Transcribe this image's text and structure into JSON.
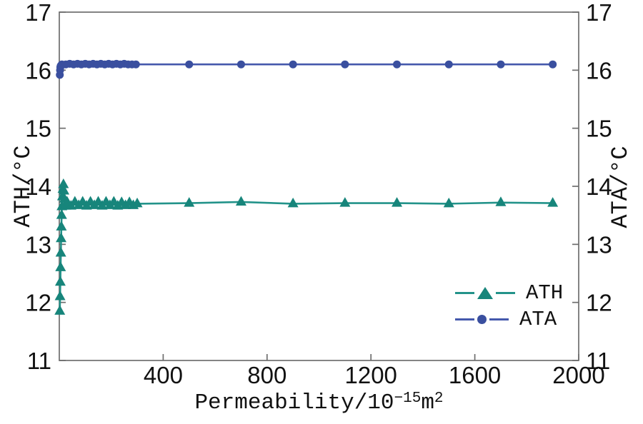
{
  "figure": {
    "background": "#ffffff",
    "axis_color": "#6e6e6e",
    "text_color": "#111111"
  },
  "chart_data": {
    "type": "line",
    "title": "",
    "grid": false,
    "x_axis": {
      "label_prefix": "Permeability/10",
      "label_sup": "−15",
      "label_unit": "m",
      "label_unit_sup": "2",
      "range": [
        0,
        2000
      ],
      "ticks": [
        400,
        800,
        1200,
        1600,
        2000
      ]
    },
    "y_left_axis": {
      "label": "ATH/°C",
      "range": [
        11,
        17
      ],
      "ticks": [
        11,
        12,
        13,
        14,
        15,
        16,
        17
      ]
    },
    "y_right_axis": {
      "label": "ATA/°C",
      "range": [
        11,
        17
      ],
      "ticks": [
        11,
        12,
        13,
        14,
        15,
        16,
        17
      ]
    },
    "legend": {
      "position": "lower-right",
      "items": [
        {
          "label": "ATH",
          "marker": "triangle",
          "color": "#17857B"
        },
        {
          "label": "ATA",
          "marker": "circle",
          "color": "#3A4F9F"
        }
      ]
    },
    "series": [
      {
        "name": "ATH",
        "axis": "left",
        "marker": "triangle",
        "color": "#17857B",
        "line_color": "#23938A",
        "points": [
          [
            2,
            11.85
          ],
          [
            3,
            12.1
          ],
          [
            4,
            12.35
          ],
          [
            5,
            12.6
          ],
          [
            6,
            12.85
          ],
          [
            7,
            13.1
          ],
          [
            8,
            13.3
          ],
          [
            9,
            13.5
          ],
          [
            10,
            13.65
          ],
          [
            12,
            13.82
          ],
          [
            14,
            13.95
          ],
          [
            16,
            14.03
          ],
          [
            18,
            13.92
          ],
          [
            20,
            13.78
          ],
          [
            25,
            13.66
          ],
          [
            30,
            13.73
          ],
          [
            45,
            13.66
          ],
          [
            60,
            13.73
          ],
          [
            75,
            13.67
          ],
          [
            90,
            13.73
          ],
          [
            105,
            13.66
          ],
          [
            120,
            13.73
          ],
          [
            135,
            13.67
          ],
          [
            150,
            13.73
          ],
          [
            165,
            13.66
          ],
          [
            180,
            13.73
          ],
          [
            195,
            13.67
          ],
          [
            210,
            13.73
          ],
          [
            225,
            13.66
          ],
          [
            240,
            13.72
          ],
          [
            255,
            13.67
          ],
          [
            270,
            13.72
          ],
          [
            285,
            13.67
          ],
          [
            300,
            13.7
          ],
          [
            500,
            13.71
          ],
          [
            700,
            13.73
          ],
          [
            900,
            13.7
          ],
          [
            1100,
            13.71
          ],
          [
            1300,
            13.71
          ],
          [
            1500,
            13.7
          ],
          [
            1700,
            13.72
          ],
          [
            1900,
            13.71
          ]
        ]
      },
      {
        "name": "ATA",
        "axis": "right",
        "marker": "circle",
        "color": "#3A4F9F",
        "line_color": "#4458AC",
        "points": [
          [
            2,
            15.92
          ],
          [
            3,
            16.0
          ],
          [
            4,
            16.05
          ],
          [
            5,
            16.07
          ],
          [
            6,
            16.08
          ],
          [
            8,
            16.09
          ],
          [
            10,
            16.1
          ],
          [
            25,
            16.1
          ],
          [
            40,
            16.11
          ],
          [
            55,
            16.1
          ],
          [
            70,
            16.11
          ],
          [
            85,
            16.1
          ],
          [
            100,
            16.11
          ],
          [
            115,
            16.1
          ],
          [
            130,
            16.11
          ],
          [
            145,
            16.1
          ],
          [
            160,
            16.11
          ],
          [
            175,
            16.1
          ],
          [
            190,
            16.11
          ],
          [
            205,
            16.1
          ],
          [
            220,
            16.11
          ],
          [
            235,
            16.1
          ],
          [
            250,
            16.11
          ],
          [
            265,
            16.1
          ],
          [
            280,
            16.1
          ],
          [
            295,
            16.1
          ],
          [
            500,
            16.1
          ],
          [
            700,
            16.1
          ],
          [
            900,
            16.1
          ],
          [
            1100,
            16.1
          ],
          [
            1300,
            16.1
          ],
          [
            1500,
            16.1
          ],
          [
            1700,
            16.1
          ],
          [
            1900,
            16.1
          ]
        ]
      }
    ]
  }
}
